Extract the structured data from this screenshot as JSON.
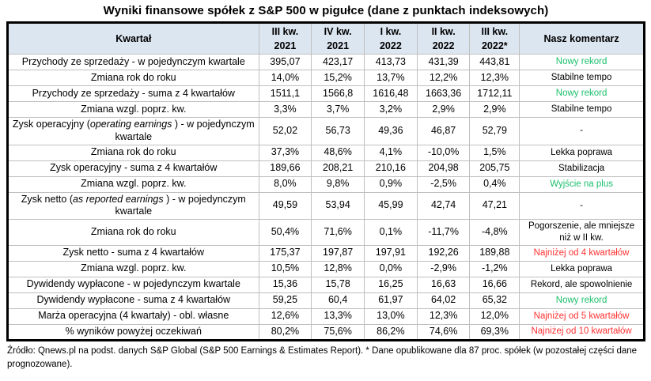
{
  "title": "Wyniki finansowe spółek z S&P 500 w pigułce (dane z punktach indeksowych)",
  "header": {
    "cells": [
      "Kwartał",
      "III kw.\n2021",
      "IV kw.\n2021",
      "I kw.\n2022",
      "II kw.\n2022",
      "III kw.\n2022*",
      "Nasz komentarz"
    ]
  },
  "colors": {
    "green": "#1ec06e",
    "red": "#ff3232",
    "black": "#000000",
    "header_bg": "#dce6f1",
    "grid": "#bfbfbf",
    "border": "#000000"
  },
  "chart_data": {
    "type": "table",
    "title": "Wyniki finansowe spółek z S&P 500 w pigułce (dane z punktach indeksowych)",
    "columns": [
      "Kwartał",
      "III kw. 2021",
      "IV kw. 2021",
      "I kw. 2022",
      "II kw. 2022",
      "III kw. 2022*",
      "Nasz komentarz"
    ],
    "rows": [
      {
        "label_parts": [
          {
            "t": "Przychody ze sprzedaży - w pojedynczym kwartale"
          }
        ],
        "values": [
          "395,07",
          "423,17",
          "413,73",
          "431,39",
          "443,81"
        ],
        "comment": "Nowy rekord",
        "comment_color": "green"
      },
      {
        "label_parts": [
          {
            "t": "Zmiana rok do roku"
          }
        ],
        "values": [
          "14,0%",
          "15,2%",
          "13,7%",
          "12,2%",
          "12,3%"
        ],
        "comment": "Stabilne tempo",
        "comment_color": "black"
      },
      {
        "label_parts": [
          {
            "t": "Przychody ze sprzedaży - suma z 4 kwartałów"
          }
        ],
        "values": [
          "1511,1",
          "1566,8",
          "1616,48",
          "1663,36",
          "1712,11"
        ],
        "comment": "Nowy rekord",
        "comment_color": "green"
      },
      {
        "label_parts": [
          {
            "t": "Zmiana wzgl. poprz. kw."
          }
        ],
        "values": [
          "3,3%",
          "3,7%",
          "3,2%",
          "2,9%",
          "2,9%"
        ],
        "comment": "Stabilne tempo",
        "comment_color": "black"
      },
      {
        "label_parts": [
          {
            "t": "Zysk operacyjny ("
          },
          {
            "t": "operating earnings",
            "i": true
          },
          {
            "t": " ) - w pojedynczym kwartale"
          }
        ],
        "values": [
          "52,02",
          "56,73",
          "49,36",
          "46,87",
          "52,79"
        ],
        "comment": "-",
        "comment_color": "black"
      },
      {
        "label_parts": [
          {
            "t": "Zmiana rok do roku"
          }
        ],
        "values": [
          "37,3%",
          "48,6%",
          "4,1%",
          "-10,0%",
          "1,5%"
        ],
        "comment": "Lekka poprawa",
        "comment_color": "black"
      },
      {
        "label_parts": [
          {
            "t": "Zysk operacyjny - suma z 4 kwartałów"
          }
        ],
        "values": [
          "189,66",
          "208,21",
          "210,16",
          "204,98",
          "205,75"
        ],
        "comment": "Stabilizacja",
        "comment_color": "black"
      },
      {
        "label_parts": [
          {
            "t": "Zmiana wzgl. poprz. kw."
          }
        ],
        "values": [
          "8,0%",
          "9,8%",
          "0,9%",
          "-2,5%",
          "0,4%"
        ],
        "comment": "Wyjście na plus",
        "comment_color": "green"
      },
      {
        "label_parts": [
          {
            "t": "Zysk netto ("
          },
          {
            "t": "as reported earnings",
            "i": true
          },
          {
            "t": " ) - w pojedynczym kwartale"
          }
        ],
        "values": [
          "49,59",
          "53,94",
          "45,99",
          "42,74",
          "47,21"
        ],
        "comment": "-",
        "comment_color": "black"
      },
      {
        "label_parts": [
          {
            "t": "Zmiana rok do roku"
          }
        ],
        "values": [
          "50,4%",
          "71,6%",
          "0,1%",
          "-11,7%",
          "-4,8%"
        ],
        "comment": "Pogorszenie, ale mniejsze niż w II kw.",
        "comment_color": "black"
      },
      {
        "label_parts": [
          {
            "t": "Zysk netto - suma z 4 kwartałów"
          }
        ],
        "values": [
          "175,37",
          "197,87",
          "197,91",
          "192,26",
          "189,88"
        ],
        "comment": "Najniżej od 4 kwartałów",
        "comment_color": "red"
      },
      {
        "label_parts": [
          {
            "t": "Zmiana wzgl. poprz. kw."
          }
        ],
        "values": [
          "10,5%",
          "12,8%",
          "0,0%",
          "-2,9%",
          "-1,2%"
        ],
        "comment": "Lekka poprawa",
        "comment_color": "black"
      },
      {
        "label_parts": [
          {
            "t": "Dywidendy wypłacone - w pojedynczym kwartale"
          }
        ],
        "values": [
          "15,36",
          "15,78",
          "16,25",
          "16,63",
          "16,66"
        ],
        "comment": "Rekord, ale spowolnienie",
        "comment_color": "black"
      },
      {
        "label_parts": [
          {
            "t": "Dywidendy wypłacone - suma z 4 kwartałów"
          }
        ],
        "values": [
          "59,25",
          "60,4",
          "61,97",
          "64,02",
          "65,32"
        ],
        "comment": "Nowy rekord",
        "comment_color": "green"
      },
      {
        "label_parts": [
          {
            "t": "Marża operacyjna (4 kwartały) - obl. własne"
          }
        ],
        "values": [
          "12,6%",
          "13,3%",
          "13,0%",
          "12,3%",
          "12,0%"
        ],
        "comment": "Najniżej od 5 kwartałów",
        "comment_color": "red"
      },
      {
        "label_parts": [
          {
            "t": "% wyników powyżej oczekiwań"
          }
        ],
        "values": [
          "80,2%",
          "75,6%",
          "86,2%",
          "74,6%",
          "69,3%"
        ],
        "comment": "Najniżej od 10 kwartałów",
        "comment_color": "red"
      }
    ]
  },
  "footnote": "Źródło: Qnews.pl na podst. danych S&P Global (S&P 500 Earnings & Estimates Report). * Dane opublikowane dla 87 proc. spółek (w pozostałej części dane prognozowane)."
}
